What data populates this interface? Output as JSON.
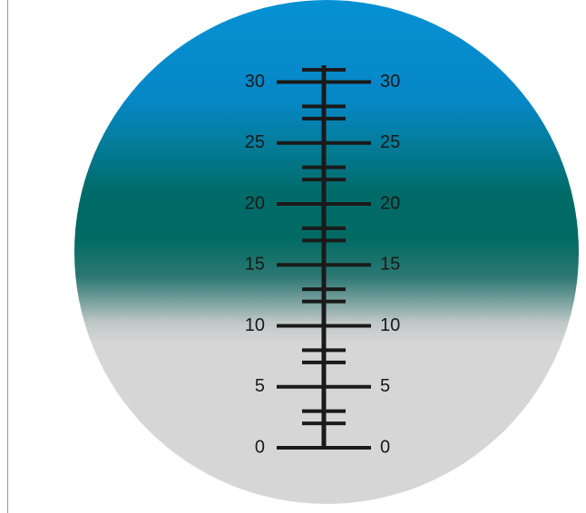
{
  "colors": {
    "top_blue": "#0591d3",
    "teal": "#006a63",
    "light_gray": "#d6d6d6",
    "scale_ink": "#1a1a1a"
  },
  "scale": {
    "max": 31,
    "min": 0,
    "minor_step": 1,
    "labeled_ticks": [
      "0",
      "5",
      "10",
      "15",
      "20",
      "25",
      "30"
    ],
    "medium_ticks": [
      2,
      3,
      7,
      8,
      12,
      13,
      17,
      18,
      22,
      23,
      27,
      28
    ],
    "short_ticks": [
      31
    ]
  }
}
